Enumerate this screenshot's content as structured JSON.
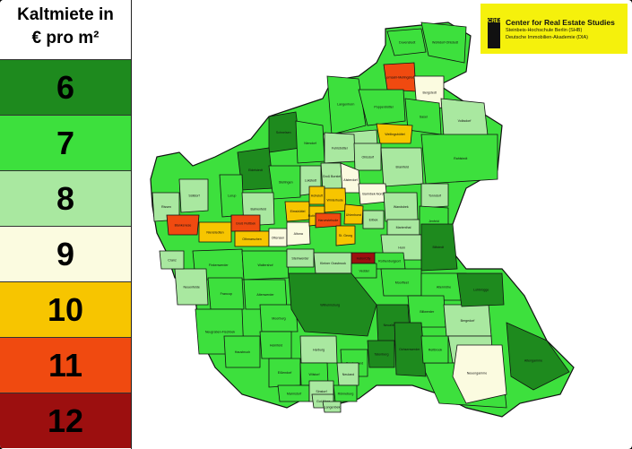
{
  "legend": {
    "title_line1": "Kaltmiete in",
    "title_line2": "€ pro m²",
    "classes": [
      {
        "label": "6",
        "color": "#1e8a1e"
      },
      {
        "label": "7",
        "color": "#3de03d"
      },
      {
        "label": "8",
        "color": "#a9e8a0"
      },
      {
        "label": "9",
        "color": "#fbfbe0"
      },
      {
        "label": "10",
        "color": "#f7c500"
      },
      {
        "label": "11",
        "color": "#f04a10"
      },
      {
        "label": "12",
        "color": "#9c0f0f"
      }
    ]
  },
  "badge": {
    "logo_text": "CRES",
    "title": "Center for Real Estate Studies",
    "line1": "Steinbeis-Hochschule Berlin (SHB)",
    "line2": "Deutsche Immobilien-Akademie (DIA)"
  },
  "districts": [
    {
      "name": "Duvenstedt",
      "class": "7"
    },
    {
      "name": "Wohldorf-Ohlstedt",
      "class": "7"
    },
    {
      "name": "Lemsahl-Mellingstedt",
      "class": "11"
    },
    {
      "name": "Bergstedt",
      "class": "9"
    },
    {
      "name": "Volksdorf",
      "class": "8"
    },
    {
      "name": "Sasel",
      "class": "7"
    },
    {
      "name": "Langenhorn",
      "class": "7"
    },
    {
      "name": "Poppenbüttel",
      "class": "7"
    },
    {
      "name": "Wellingsbüttel",
      "class": "10"
    },
    {
      "name": "Hummelsbüttel",
      "class": "8"
    },
    {
      "name": "Schnelsen",
      "class": "6"
    },
    {
      "name": "Niendorf",
      "class": "7"
    },
    {
      "name": "Fuhlsbüttel",
      "class": "8"
    },
    {
      "name": "Ohlsdorf",
      "class": "8"
    },
    {
      "name": "Bramfeld",
      "class": "8"
    },
    {
      "name": "Rahlstedt",
      "class": "7"
    },
    {
      "name": "Eidelstedt",
      "class": "6"
    },
    {
      "name": "Stellingen",
      "class": "7"
    },
    {
      "name": "Lokstedt",
      "class": "8"
    },
    {
      "name": "Groß Borstel",
      "class": "8"
    },
    {
      "name": "Alsterdorf",
      "class": "9"
    },
    {
      "name": "Barmbek-Nord",
      "class": "9"
    },
    {
      "name": "Tonndorf",
      "class": "8"
    },
    {
      "name": "Lurup",
      "class": "7"
    },
    {
      "name": "Bahrenfeld",
      "class": "8"
    },
    {
      "name": "Eimsbüttel",
      "class": "10"
    },
    {
      "name": "Hoheluft",
      "class": "10"
    },
    {
      "name": "Winterhude",
      "class": "10"
    },
    {
      "name": "Uhlenhorst",
      "class": "10"
    },
    {
      "name": "Rissen",
      "class": "8"
    },
    {
      "name": "Sülldorf",
      "class": "8"
    },
    {
      "name": "Blankenese",
      "class": "11"
    },
    {
      "name": "Nienstedten",
      "class": "10"
    },
    {
      "name": "Groß Flottbek",
      "class": "11"
    },
    {
      "name": "Othmarschen",
      "class": "10"
    },
    {
      "name": "Ottensen",
      "class": "9"
    },
    {
      "name": "Altona",
      "class": "9"
    },
    {
      "name": "Rotherbaum",
      "class": "10"
    },
    {
      "name": "Harvestehude",
      "class": "11"
    },
    {
      "name": "St. Georg",
      "class": "10"
    },
    {
      "name": "Eilbek",
      "class": "8"
    },
    {
      "name": "Wandsbek",
      "class": "8"
    },
    {
      "name": "Marienthal",
      "class": "8"
    },
    {
      "name": "Jenfeld",
      "class": "7"
    },
    {
      "name": "Horn",
      "class": "8"
    },
    {
      "name": "Billstedt",
      "class": "6"
    },
    {
      "name": "HafenCity",
      "class": "12"
    },
    {
      "name": "Rothenburgsort",
      "class": "7"
    },
    {
      "name": "Finkenwerder",
      "class": "7"
    },
    {
      "name": "Waltershof",
      "class": "7"
    },
    {
      "name": "Steinwerder",
      "class": "8"
    },
    {
      "name": "Kleiner Grasbrook",
      "class": "8"
    },
    {
      "name": "Veddel",
      "class": "7"
    },
    {
      "name": "Neuenfelde",
      "class": "8"
    },
    {
      "name": "Cranz",
      "class": "8"
    },
    {
      "name": "Francop",
      "class": "7"
    },
    {
      "name": "Altenwerder",
      "class": "7"
    },
    {
      "name": "Moorburg",
      "class": "7"
    },
    {
      "name": "Wilhelmsburg",
      "class": "6"
    },
    {
      "name": "Neugraben-Fischbek",
      "class": "7"
    },
    {
      "name": "Hausbruch",
      "class": "7"
    },
    {
      "name": "Heimfeld",
      "class": "7"
    },
    {
      "name": "Eißendorf",
      "class": "7"
    },
    {
      "name": "Harburg",
      "class": "8"
    },
    {
      "name": "Wilstorf",
      "class": "7"
    },
    {
      "name": "Marmstorf",
      "class": "7"
    },
    {
      "name": "Sinstorf",
      "class": "8"
    },
    {
      "name": "Moorfleet",
      "class": "7"
    },
    {
      "name": "Allermöhe",
      "class": "7"
    },
    {
      "name": "Billwerder",
      "class": "7"
    },
    {
      "name": "Bergedorf",
      "class": "8"
    },
    {
      "name": "Lohbrügge",
      "class": "6"
    },
    {
      "name": "Neuallermöhe",
      "class": "6"
    },
    {
      "name": "Curslack",
      "class": "8"
    },
    {
      "name": "Altengamme",
      "class": "6"
    },
    {
      "name": "Kirchwerder",
      "class": "7"
    },
    {
      "name": "Neuengamme",
      "class": "9"
    },
    {
      "name": "Ochsenwerder",
      "class": "6"
    },
    {
      "name": "Reitbrook",
      "class": "7"
    },
    {
      "name": "Tatenberg",
      "class": "6"
    },
    {
      "name": "Spadenland",
      "class": "7"
    },
    {
      "name": "Neuland",
      "class": "8"
    },
    {
      "name": "Gut Moor",
      "class": "8"
    },
    {
      "name": "Rönneburg",
      "class": "7"
    },
    {
      "name": "Langenbek",
      "class": "8"
    }
  ]
}
